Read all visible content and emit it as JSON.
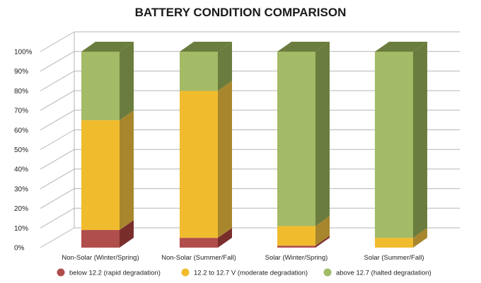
{
  "chart_data": {
    "type": "bar",
    "stacked": true,
    "title": "BATTERY CONDITION COMPARISON",
    "categories": [
      "Non-Solar (Winter/Spring)",
      "Non-Solar (Summer/Fall)",
      "Solar (Winter/Spring)",
      "Solar (Summer/Fall)"
    ],
    "series": [
      {
        "name": "below 12.2 (rapid degradation)",
        "values": [
          9,
          5,
          1,
          0
        ],
        "color": "#b04e4c",
        "side": "#7a2e2c"
      },
      {
        "name": "12.2 to 12.7 V (moderate degradation)",
        "values": [
          56,
          75,
          10,
          5
        ],
        "color": "#f0bc2e",
        "side": "#a8862d"
      },
      {
        "name": "above 12.7 (halted degradation)",
        "values": [
          35,
          20,
          89,
          95
        ],
        "color": "#a3ba66",
        "side": "#6b7d3e"
      }
    ],
    "yticks": [
      "0%",
      "10%",
      "20%",
      "30%",
      "40%",
      "50%",
      "60%",
      "70%",
      "80%",
      "90%",
      "100%"
    ],
    "ylim": [
      0,
      100
    ],
    "grid": true,
    "legend_position": "bottom"
  }
}
